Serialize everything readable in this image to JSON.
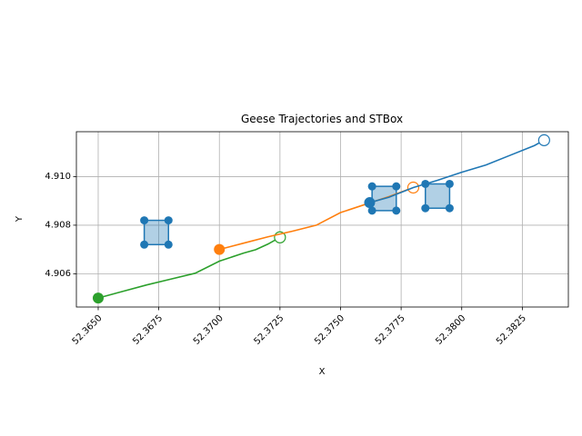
{
  "chart_data": {
    "type": "line",
    "title": "Geese Trajectories and STBox",
    "xlabel": "X",
    "ylabel": "Y",
    "xlim": [
      52.3641,
      52.3844
    ],
    "ylim": [
      4.90463,
      4.91185
    ],
    "xticks": [
      "52.3650",
      "52.3675",
      "52.3700",
      "52.3725",
      "52.3750",
      "52.3775",
      "52.3800",
      "52.3825"
    ],
    "xtick_values": [
      52.365,
      52.3675,
      52.37,
      52.3725,
      52.375,
      52.3775,
      52.38,
      52.3825
    ],
    "yticks": [
      "4.906",
      "4.908",
      "4.910"
    ],
    "ytick_values": [
      4.906,
      4.908,
      4.91
    ],
    "grid": true,
    "series": [
      {
        "color": "#2ca02c",
        "x": [
          52.365,
          52.366,
          52.367,
          52.368,
          52.369,
          52.37,
          52.371,
          52.3715,
          52.372,
          52.3725
        ],
        "y": [
          4.905,
          4.90527,
          4.90554,
          4.90578,
          4.90602,
          4.90652,
          4.90685,
          4.90699,
          4.90722,
          4.9075
        ],
        "start": {
          "x": 52.365,
          "y": 4.905
        },
        "end": {
          "x": 52.3725,
          "y": 4.9075
        }
      },
      {
        "color": "#ff7f0e",
        "x": [
          52.37,
          52.371,
          52.372,
          52.373,
          52.374,
          52.375,
          52.376,
          52.377,
          52.378
        ],
        "y": [
          4.907,
          4.90726,
          4.90752,
          4.90775,
          4.908,
          4.90852,
          4.90885,
          4.90918,
          4.90955
        ],
        "start": {
          "x": 52.37,
          "y": 4.907
        },
        "end": {
          "x": 52.378,
          "y": 4.90955
        }
      },
      {
        "color": "#1f77b4",
        "x": [
          52.3762,
          52.377,
          52.378,
          52.379,
          52.38,
          52.381,
          52.382,
          52.383,
          52.3834
        ],
        "y": [
          4.90893,
          4.90915,
          4.90955,
          4.90985,
          4.91018,
          4.91048,
          4.91088,
          4.91128,
          4.9115
        ],
        "start": {
          "x": 52.3762,
          "y": 4.90893
        },
        "end": {
          "x": 52.3834,
          "y": 4.9115
        }
      }
    ],
    "stboxes": [
      {
        "xmin": 52.3669,
        "xmax": 52.3679,
        "ymin": 4.9072,
        "ymax": 4.9082,
        "color": "#1f77b4"
      },
      {
        "xmin": 52.3763,
        "xmax": 52.3773,
        "ymin": 4.9086,
        "ymax": 4.9096,
        "color": "#1f77b4"
      },
      {
        "xmin": 52.3785,
        "xmax": 52.3795,
        "ymin": 4.9087,
        "ymax": 4.9097,
        "color": "#1f77b4"
      }
    ]
  }
}
